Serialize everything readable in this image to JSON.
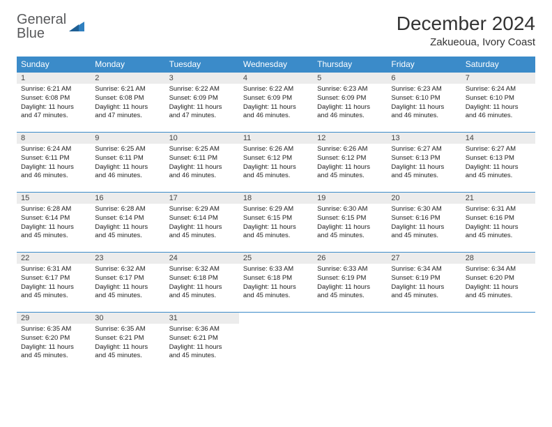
{
  "logo": {
    "line1": "General",
    "line2": "Blue"
  },
  "title": "December 2024",
  "location": "Zakueoua, Ivory Coast",
  "colors": {
    "header_bg": "#3b8bc9",
    "header_text": "#ffffff",
    "daynum_bg": "#ececec",
    "border": "#3b8bc9",
    "logo_gray": "#58595b",
    "logo_blue": "#2f7fbf"
  },
  "weekdays": [
    "Sunday",
    "Monday",
    "Tuesday",
    "Wednesday",
    "Thursday",
    "Friday",
    "Saturday"
  ],
  "days": [
    {
      "n": 1,
      "sunrise": "6:21 AM",
      "sunset": "6:08 PM",
      "daylight": "11 hours and 47 minutes."
    },
    {
      "n": 2,
      "sunrise": "6:21 AM",
      "sunset": "6:08 PM",
      "daylight": "11 hours and 47 minutes."
    },
    {
      "n": 3,
      "sunrise": "6:22 AM",
      "sunset": "6:09 PM",
      "daylight": "11 hours and 47 minutes."
    },
    {
      "n": 4,
      "sunrise": "6:22 AM",
      "sunset": "6:09 PM",
      "daylight": "11 hours and 46 minutes."
    },
    {
      "n": 5,
      "sunrise": "6:23 AM",
      "sunset": "6:09 PM",
      "daylight": "11 hours and 46 minutes."
    },
    {
      "n": 6,
      "sunrise": "6:23 AM",
      "sunset": "6:10 PM",
      "daylight": "11 hours and 46 minutes."
    },
    {
      "n": 7,
      "sunrise": "6:24 AM",
      "sunset": "6:10 PM",
      "daylight": "11 hours and 46 minutes."
    },
    {
      "n": 8,
      "sunrise": "6:24 AM",
      "sunset": "6:11 PM",
      "daylight": "11 hours and 46 minutes."
    },
    {
      "n": 9,
      "sunrise": "6:25 AM",
      "sunset": "6:11 PM",
      "daylight": "11 hours and 46 minutes."
    },
    {
      "n": 10,
      "sunrise": "6:25 AM",
      "sunset": "6:11 PM",
      "daylight": "11 hours and 46 minutes."
    },
    {
      "n": 11,
      "sunrise": "6:26 AM",
      "sunset": "6:12 PM",
      "daylight": "11 hours and 45 minutes."
    },
    {
      "n": 12,
      "sunrise": "6:26 AM",
      "sunset": "6:12 PM",
      "daylight": "11 hours and 45 minutes."
    },
    {
      "n": 13,
      "sunrise": "6:27 AM",
      "sunset": "6:13 PM",
      "daylight": "11 hours and 45 minutes."
    },
    {
      "n": 14,
      "sunrise": "6:27 AM",
      "sunset": "6:13 PM",
      "daylight": "11 hours and 45 minutes."
    },
    {
      "n": 15,
      "sunrise": "6:28 AM",
      "sunset": "6:14 PM",
      "daylight": "11 hours and 45 minutes."
    },
    {
      "n": 16,
      "sunrise": "6:28 AM",
      "sunset": "6:14 PM",
      "daylight": "11 hours and 45 minutes."
    },
    {
      "n": 17,
      "sunrise": "6:29 AM",
      "sunset": "6:14 PM",
      "daylight": "11 hours and 45 minutes."
    },
    {
      "n": 18,
      "sunrise": "6:29 AM",
      "sunset": "6:15 PM",
      "daylight": "11 hours and 45 minutes."
    },
    {
      "n": 19,
      "sunrise": "6:30 AM",
      "sunset": "6:15 PM",
      "daylight": "11 hours and 45 minutes."
    },
    {
      "n": 20,
      "sunrise": "6:30 AM",
      "sunset": "6:16 PM",
      "daylight": "11 hours and 45 minutes."
    },
    {
      "n": 21,
      "sunrise": "6:31 AM",
      "sunset": "6:16 PM",
      "daylight": "11 hours and 45 minutes."
    },
    {
      "n": 22,
      "sunrise": "6:31 AM",
      "sunset": "6:17 PM",
      "daylight": "11 hours and 45 minutes."
    },
    {
      "n": 23,
      "sunrise": "6:32 AM",
      "sunset": "6:17 PM",
      "daylight": "11 hours and 45 minutes."
    },
    {
      "n": 24,
      "sunrise": "6:32 AM",
      "sunset": "6:18 PM",
      "daylight": "11 hours and 45 minutes."
    },
    {
      "n": 25,
      "sunrise": "6:33 AM",
      "sunset": "6:18 PM",
      "daylight": "11 hours and 45 minutes."
    },
    {
      "n": 26,
      "sunrise": "6:33 AM",
      "sunset": "6:19 PM",
      "daylight": "11 hours and 45 minutes."
    },
    {
      "n": 27,
      "sunrise": "6:34 AM",
      "sunset": "6:19 PM",
      "daylight": "11 hours and 45 minutes."
    },
    {
      "n": 28,
      "sunrise": "6:34 AM",
      "sunset": "6:20 PM",
      "daylight": "11 hours and 45 minutes."
    },
    {
      "n": 29,
      "sunrise": "6:35 AM",
      "sunset": "6:20 PM",
      "daylight": "11 hours and 45 minutes."
    },
    {
      "n": 30,
      "sunrise": "6:35 AM",
      "sunset": "6:21 PM",
      "daylight": "11 hours and 45 minutes."
    },
    {
      "n": 31,
      "sunrise": "6:36 AM",
      "sunset": "6:21 PM",
      "daylight": "11 hours and 45 minutes."
    }
  ],
  "labels": {
    "sunrise": "Sunrise:",
    "sunset": "Sunset:",
    "daylight": "Daylight:"
  },
  "layout": {
    "first_weekday_index": 0,
    "total_cells": 35,
    "cols": 7
  }
}
